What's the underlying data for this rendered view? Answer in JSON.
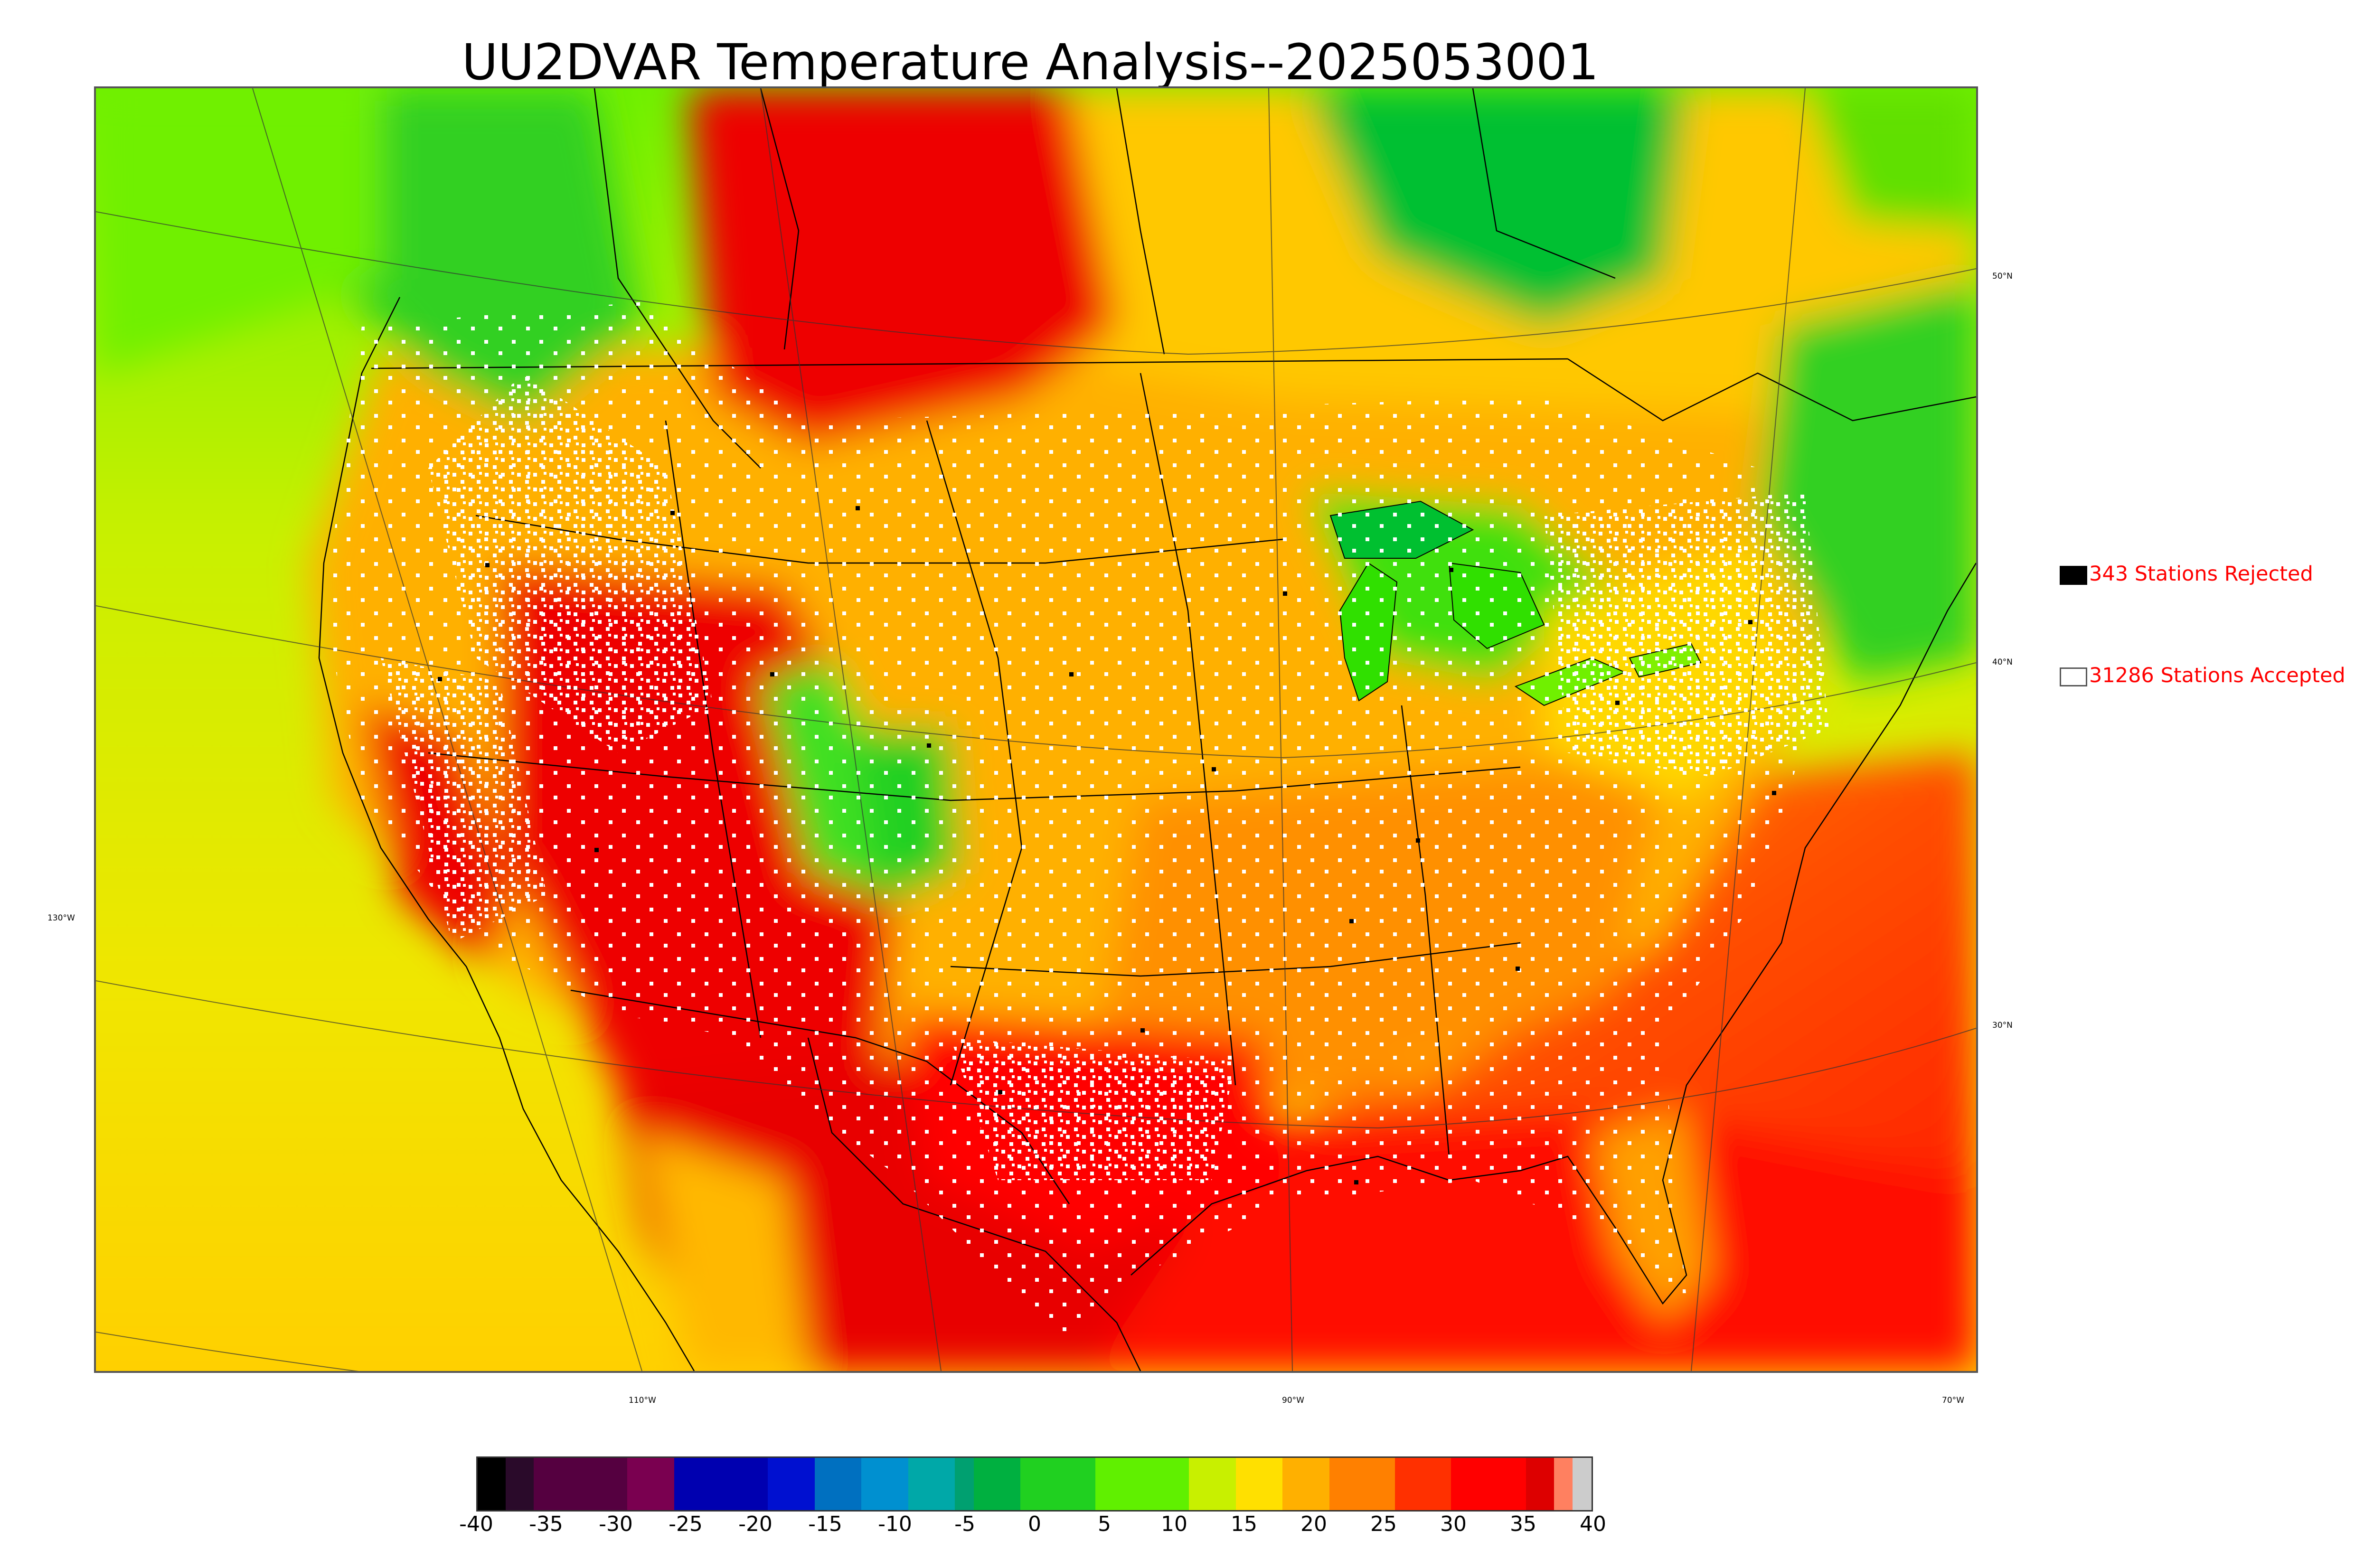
{
  "title": "UU2DVAR Temperature Analysis--2025053001",
  "legend": {
    "rejected": {
      "label": "343 Stations Rejected",
      "color": "#000000"
    },
    "accepted": {
      "label": "31286 Stations Accepted",
      "color": "#ffffff"
    }
  },
  "latitude_labels": [
    "50°N",
    "40°N",
    "30°N",
    "130°W"
  ],
  "longitude_labels": [
    "110°W",
    "90°W",
    "70°W"
  ],
  "colorbar": {
    "ticks": [
      "-40",
      "-35",
      "-30",
      "-25",
      "-20",
      "-15",
      "-10",
      "-5",
      "0",
      "5",
      "10",
      "15",
      "20",
      "25",
      "30",
      "35",
      "40"
    ],
    "colors": [
      "#000000",
      "#2a0a2a",
      "#550040",
      "#7a0050",
      "#0000b0",
      "#0010d0",
      "#0070c0",
      "#0090d0",
      "#00a8a8",
      "#00a070",
      "#00b040",
      "#20d020",
      "#60f000",
      "#c8f000",
      "#ffe000",
      "#ffb000",
      "#ff8000",
      "#ff3000",
      "#ff0000",
      "#dd0000",
      "#ff8060",
      "#cccccc"
    ]
  },
  "map": {
    "ocean_west": "#e8e800",
    "ocean_east": "#ff3000",
    "hot_red": "#ee0000",
    "warm_orange": "#ff9a00",
    "mild_yellow": "#ffd000",
    "cool_green": "#30e020",
    "cold_green": "#00b030"
  }
}
